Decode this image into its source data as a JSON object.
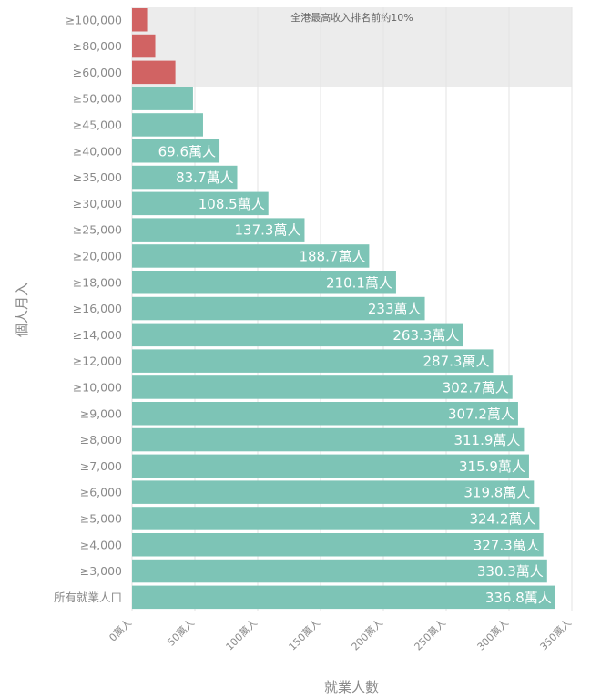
{
  "chart_data": {
    "type": "bar",
    "orientation": "horizontal",
    "xlabel": "就業人數",
    "ylabel": "個人月入",
    "xlim": [
      0,
      350
    ],
    "x_ticks": [
      0,
      50,
      100,
      150,
      200,
      250,
      300,
      350
    ],
    "x_tick_labels": [
      "0萬人",
      "50萬人",
      "100萬人",
      "150萬人",
      "200萬人",
      "250萬人",
      "300萬人",
      "350萬人"
    ],
    "grid": true,
    "highlight_band": {
      "label": "全港最高收入排名前約10%",
      "categories": [
        "≥100,000",
        "≥80,000",
        "≥60,000"
      ]
    },
    "colors": {
      "normal": "#7dc4b6",
      "highlight": "#d16363",
      "band": "#ececec"
    },
    "bars": [
      {
        "category": "≥100,000",
        "value": 12,
        "label": "",
        "highlight": true
      },
      {
        "category": "≥80,000",
        "value": 18.5,
        "label": "",
        "highlight": true
      },
      {
        "category": "≥60,000",
        "value": 34.5,
        "label": "",
        "highlight": true
      },
      {
        "category": "≥50,000",
        "value": 48.5,
        "label": "",
        "highlight": false
      },
      {
        "category": "≥45,000",
        "value": 56.5,
        "label": "",
        "highlight": false
      },
      {
        "category": "≥40,000",
        "value": 69.6,
        "label": "69.6萬人",
        "highlight": false
      },
      {
        "category": "≥35,000",
        "value": 83.7,
        "label": "83.7萬人",
        "highlight": false
      },
      {
        "category": "≥30,000",
        "value": 108.5,
        "label": "108.5萬人",
        "highlight": false
      },
      {
        "category": "≥25,000",
        "value": 137.3,
        "label": "137.3萬人",
        "highlight": false
      },
      {
        "category": "≥20,000",
        "value": 188.7,
        "label": "188.7萬人",
        "highlight": false
      },
      {
        "category": "≥18,000",
        "value": 210.1,
        "label": "210.1萬人",
        "highlight": false
      },
      {
        "category": "≥16,000",
        "value": 233,
        "label": "233萬人",
        "highlight": false
      },
      {
        "category": "≥14,000",
        "value": 263.3,
        "label": "263.3萬人",
        "highlight": false
      },
      {
        "category": "≥12,000",
        "value": 287.3,
        "label": "287.3萬人",
        "highlight": false
      },
      {
        "category": "≥10,000",
        "value": 302.7,
        "label": "302.7萬人",
        "highlight": false
      },
      {
        "category": "≥9,000",
        "value": 307.2,
        "label": "307.2萬人",
        "highlight": false
      },
      {
        "category": "≥8,000",
        "value": 311.9,
        "label": "311.9萬人",
        "highlight": false
      },
      {
        "category": "≥7,000",
        "value": 315.9,
        "label": "315.9萬人",
        "highlight": false
      },
      {
        "category": "≥6,000",
        "value": 319.8,
        "label": "319.8萬人",
        "highlight": false
      },
      {
        "category": "≥5,000",
        "value": 324.2,
        "label": "324.2萬人",
        "highlight": false
      },
      {
        "category": "≥4,000",
        "value": 327.3,
        "label": "327.3萬人",
        "highlight": false
      },
      {
        "category": "≥3,000",
        "value": 330.3,
        "label": "330.3萬人",
        "highlight": false
      },
      {
        "category": "所有就業人口",
        "value": 336.8,
        "label": "336.8萬人",
        "highlight": false
      }
    ]
  }
}
